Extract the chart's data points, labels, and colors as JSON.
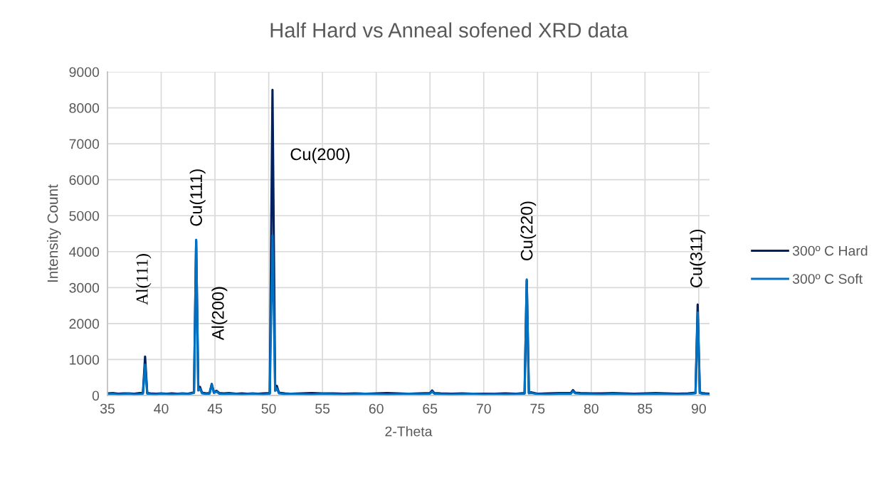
{
  "chart_data": {
    "type": "line",
    "title": "Half Hard vs Anneal sofened XRD data",
    "xlabel": "2-Theta",
    "ylabel": "Intensity Count",
    "x": [
      35,
      35.5,
      36,
      36.5,
      37,
      37.5,
      38,
      38.3,
      38.5,
      38.7,
      39,
      39.5,
      40,
      40.5,
      41,
      41.5,
      42,
      42.5,
      43.05,
      43.25,
      43.45,
      43.6,
      43.8,
      44.2,
      44.5,
      44.7,
      44.9,
      45.15,
      45.4,
      45.8,
      46.3,
      47,
      47.5,
      48,
      48.5,
      49,
      49.5,
      50.1,
      50.35,
      50.6,
      50.75,
      50.95,
      51.5,
      52,
      53,
      54,
      55,
      56,
      57,
      58,
      59,
      60,
      61,
      62,
      63,
      64,
      65,
      65.2,
      65.4,
      66,
      67,
      68,
      69,
      70,
      71,
      72,
      73,
      73.8,
      74,
      74.2,
      74.4,
      75,
      76,
      77,
      78.1,
      78.3,
      78.5,
      79,
      80,
      81,
      82,
      83,
      84,
      85,
      86,
      87,
      88,
      89,
      89.7,
      89.9,
      90.1,
      90.3,
      90.6,
      91
    ],
    "series": [
      {
        "name": "300º C Hard",
        "color": "#002060",
        "values": [
          60,
          70,
          50,
          60,
          60,
          50,
          70,
          70,
          1080,
          70,
          60,
          50,
          60,
          50,
          60,
          50,
          60,
          50,
          90,
          4300,
          160,
          240,
          80,
          60,
          70,
          320,
          90,
          130,
          70,
          60,
          70,
          50,
          60,
          50,
          60,
          50,
          60,
          70,
          8500,
          160,
          270,
          80,
          60,
          50,
          60,
          70,
          60,
          60,
          50,
          60,
          50,
          60,
          70,
          60,
          50,
          60,
          70,
          140,
          70,
          60,
          50,
          60,
          50,
          50,
          50,
          60,
          50,
          70,
          3200,
          80,
          90,
          50,
          60,
          70,
          70,
          150,
          80,
          70,
          60,
          60,
          70,
          60,
          50,
          60,
          70,
          60,
          50,
          60,
          80,
          2530,
          90,
          70,
          60,
          50
        ]
      },
      {
        "name": "300º C Soft",
        "color": "#0070c0",
        "values": [
          40,
          50,
          30,
          40,
          50,
          30,
          40,
          50,
          860,
          50,
          40,
          30,
          50,
          40,
          30,
          40,
          50,
          40,
          70,
          4330,
          140,
          190,
          60,
          40,
          50,
          300,
          70,
          110,
          50,
          40,
          50,
          40,
          30,
          40,
          50,
          40,
          30,
          50,
          4450,
          130,
          200,
          60,
          40,
          50,
          40,
          30,
          50,
          40,
          30,
          40,
          50,
          40,
          30,
          40,
          50,
          40,
          50,
          110,
          50,
          40,
          30,
          40,
          50,
          30,
          40,
          30,
          40,
          50,
          3230,
          60,
          70,
          40,
          30,
          50,
          50,
          120,
          60,
          50,
          40,
          30,
          50,
          40,
          30,
          40,
          50,
          40,
          30,
          40,
          60,
          2310,
          70,
          50,
          40,
          30
        ]
      }
    ],
    "xlim": [
      35,
      91
    ],
    "ylim": [
      0,
      9000
    ],
    "xticks": [
      35,
      40,
      45,
      50,
      55,
      60,
      65,
      70,
      75,
      80,
      85,
      90
    ],
    "yticks": [
      0,
      1000,
      2000,
      3000,
      4000,
      5000,
      6000,
      7000,
      8000,
      9000
    ],
    "grid": true,
    "legend": "right",
    "annotations": [
      "Al(111)",
      {
        "text": "Cu(111)",
        "x": 43.25,
        "y": 4300
      },
      "Al(200)",
      "Cu(200)",
      {
        "text": "Cu(220)",
        "x": 74,
        "y": 3200
      },
      {
        "text": "Cu(311)",
        "x": 89.9,
        "y": 2530
      }
    ]
  }
}
